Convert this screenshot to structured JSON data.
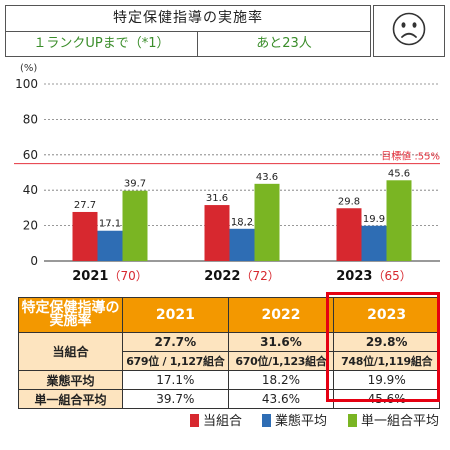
{
  "header": {
    "title": "特定保健指導の実施率",
    "left": "１ランクUPまで（*1）",
    "right": "あと23人"
  },
  "colors": {
    "own": "#d7282f",
    "industry": "#2e6db4",
    "single": "#7ab523",
    "target_line": "#e5323e",
    "header_fill": "#f39800",
    "row_fill": "#fde4bf",
    "highlight": "#e50012"
  },
  "icons": {
    "status": "sad-face-icon"
  },
  "chart_data": {
    "type": "bar",
    "categories": [
      "2021",
      "2022",
      "2023"
    ],
    "category_notes": [
      "（70）",
      "（72）",
      "（65）"
    ],
    "series": [
      {
        "name": "当組合",
        "values": [
          27.7,
          31.6,
          29.8
        ]
      },
      {
        "name": "業態平均",
        "values": [
          17.1,
          18.2,
          19.9
        ]
      },
      {
        "name": "単一組合平均",
        "values": [
          39.7,
          43.6,
          45.6
        ]
      }
    ],
    "value_labels": [
      [
        "27.7",
        "31.6",
        "29.8"
      ],
      [
        "17.1",
        "18.2",
        "19.9"
      ],
      [
        "39.7",
        "43.6",
        "45.6"
      ]
    ],
    "yunit": "(%)",
    "ylim": [
      0,
      100
    ],
    "yticks": [
      "0",
      "20",
      "40",
      "60",
      "80",
      "100"
    ],
    "target_value": 55,
    "target_label": "目標値 :55%",
    "grid": true
  },
  "table": {
    "corner": "特定保健指導の実施率",
    "years": [
      "2021",
      "2022",
      "2023"
    ],
    "own_label": "当組合",
    "own": [
      "27.7%",
      "31.6%",
      "29.8%"
    ],
    "rank": [
      "679位 / 1,127組合",
      "670位/1,123組合",
      "748位/1,119組合"
    ],
    "industry_label": "業態平均",
    "industry": [
      "17.1%",
      "18.2%",
      "19.9%"
    ],
    "single_label": "単一組合平均",
    "single": [
      "39.7%",
      "43.6%",
      "45.6%"
    ]
  },
  "legend": [
    "当組合",
    "業態平均",
    "単一組合平均"
  ]
}
